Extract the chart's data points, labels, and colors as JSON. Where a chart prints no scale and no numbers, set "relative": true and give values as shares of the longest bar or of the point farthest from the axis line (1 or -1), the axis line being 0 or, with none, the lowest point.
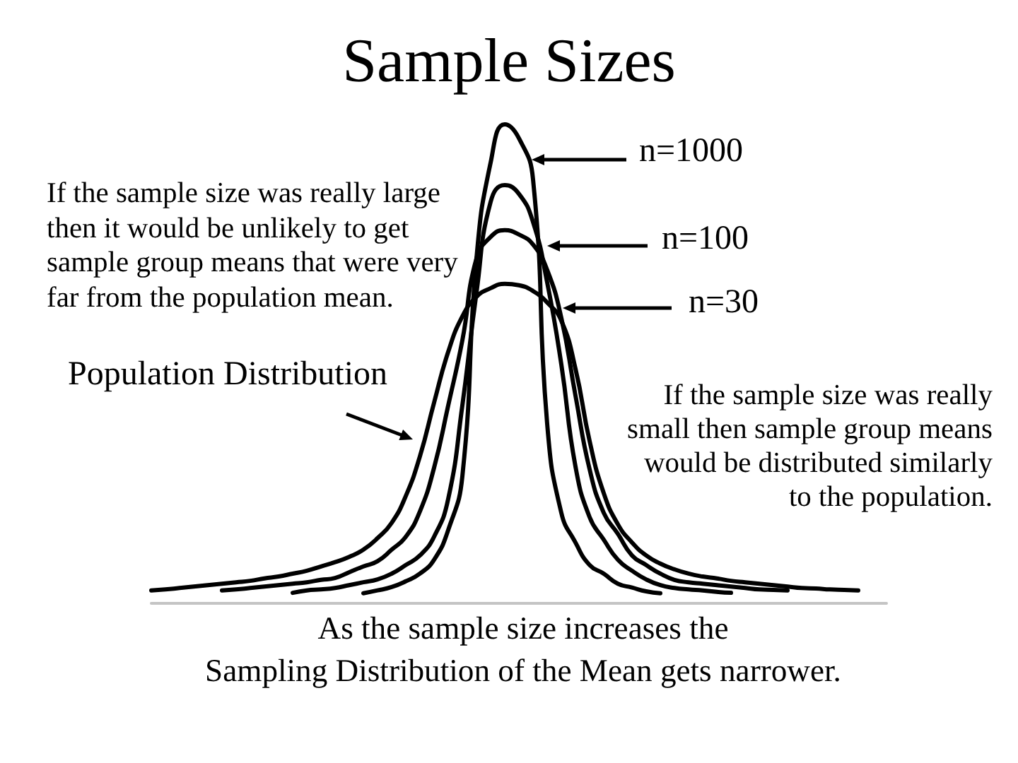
{
  "chart_data": {
    "type": "line",
    "title": "Sample Sizes",
    "relative": true,
    "legend": "top right",
    "grid": false,
    "marker": "none",
    "categories": [
      null,
      null,
      null,
      null,
      null,
      null,
      null,
      null,
      null,
      null,
      null,
      null,
      null,
      null,
      null,
      null,
      null,
      null,
      null,
      null,
      null,
      null,
      null,
      null,
      null,
      null,
      null,
      null,
      null,
      null,
      null,
      null,
      null,
      null,
      null,
      null,
      null,
      null,
      null,
      null,
      null,
      null,
      null,
      null,
      null,
      null,
      null,
      null,
      null,
      null,
      null,
      null,
      null
    ],
    "series": [
      {
        "name": "Population Distribution",
        "color": "#000000",
        "values": [
          0.027,
          0.029,
          0.032,
          0.035,
          0.038,
          0.041,
          0.044,
          0.047,
          0.052,
          0.056,
          0.062,
          0.068,
          0.077,
          0.086,
          0.097,
          0.112,
          0.136,
          0.168,
          0.224,
          0.307,
          0.419,
          0.525,
          0.599,
          0.64,
          0.658,
          0.667,
          0.664,
          0.652,
          0.628,
          0.59,
          0.49,
          0.339,
          0.23,
          0.165,
          0.127,
          0.1,
          0.083,
          0.071,
          0.062,
          0.056,
          0.052,
          0.047,
          0.044,
          0.041,
          0.038,
          0.035,
          0.032,
          0.031,
          0.029,
          0.028,
          0.027,
          null,
          null
        ]
      },
      {
        "name": "n=30",
        "color": "#000000",
        "values": [
          null,
          null,
          null,
          null,
          null,
          0.027,
          0.029,
          0.032,
          0.035,
          0.038,
          0.041,
          0.044,
          0.049,
          0.053,
          0.065,
          0.077,
          0.088,
          0.112,
          0.139,
          0.192,
          0.283,
          0.413,
          0.549,
          0.72,
          0.765,
          0.779,
          0.77,
          0.749,
          0.696,
          0.596,
          0.434,
          0.28,
          0.189,
          0.145,
          0.1,
          0.08,
          0.062,
          0.049,
          0.044,
          0.041,
          0.038,
          0.035,
          0.032,
          0.029,
          0.028,
          0.027,
          null,
          null,
          null,
          null,
          null,
          null,
          null
        ]
      },
      {
        "name": "n=100",
        "color": "#000000",
        "values": [
          null,
          null,
          null,
          null,
          null,
          null,
          null,
          null,
          null,
          null,
          0.022,
          0.027,
          0.029,
          0.032,
          0.038,
          0.044,
          0.05,
          0.062,
          0.08,
          0.1,
          0.139,
          0.218,
          0.413,
          0.649,
          0.838,
          0.873,
          0.855,
          0.796,
          0.67,
          0.499,
          0.286,
          0.18,
          0.133,
          0.091,
          0.068,
          0.05,
          0.038,
          0.032,
          0.029,
          0.027,
          0.024,
          0.022,
          null,
          null,
          null,
          null,
          null,
          null,
          null,
          null,
          null,
          null,
          null
        ]
      },
      {
        "name": "n=1000",
        "color": "#000000",
        "values": [
          null,
          null,
          null,
          null,
          null,
          null,
          null,
          null,
          null,
          null,
          null,
          null,
          null,
          null,
          null,
          0.021,
          0.027,
          0.034,
          0.046,
          0.062,
          0.091,
          0.153,
          0.265,
          0.72,
          0.92,
          1,
          0.971,
          0.885,
          0.375,
          0.189,
          0.127,
          0.08,
          0.062,
          0.041,
          0.033,
          0.025,
          0.021,
          null,
          null,
          null,
          null,
          null,
          null,
          null,
          null,
          null,
          null,
          null,
          null,
          null,
          null,
          null,
          null
        ]
      }
    ],
    "annotations": [
      "If the sample size was really large then it would be unlikely to get sample group means that were very far from the population mean.",
      "If the sample size was really small then sample group means would be distributed similarly to the population.",
      "As the sample size increases the\nSampling Distribution of the Mean gets narrower."
    ]
  }
}
